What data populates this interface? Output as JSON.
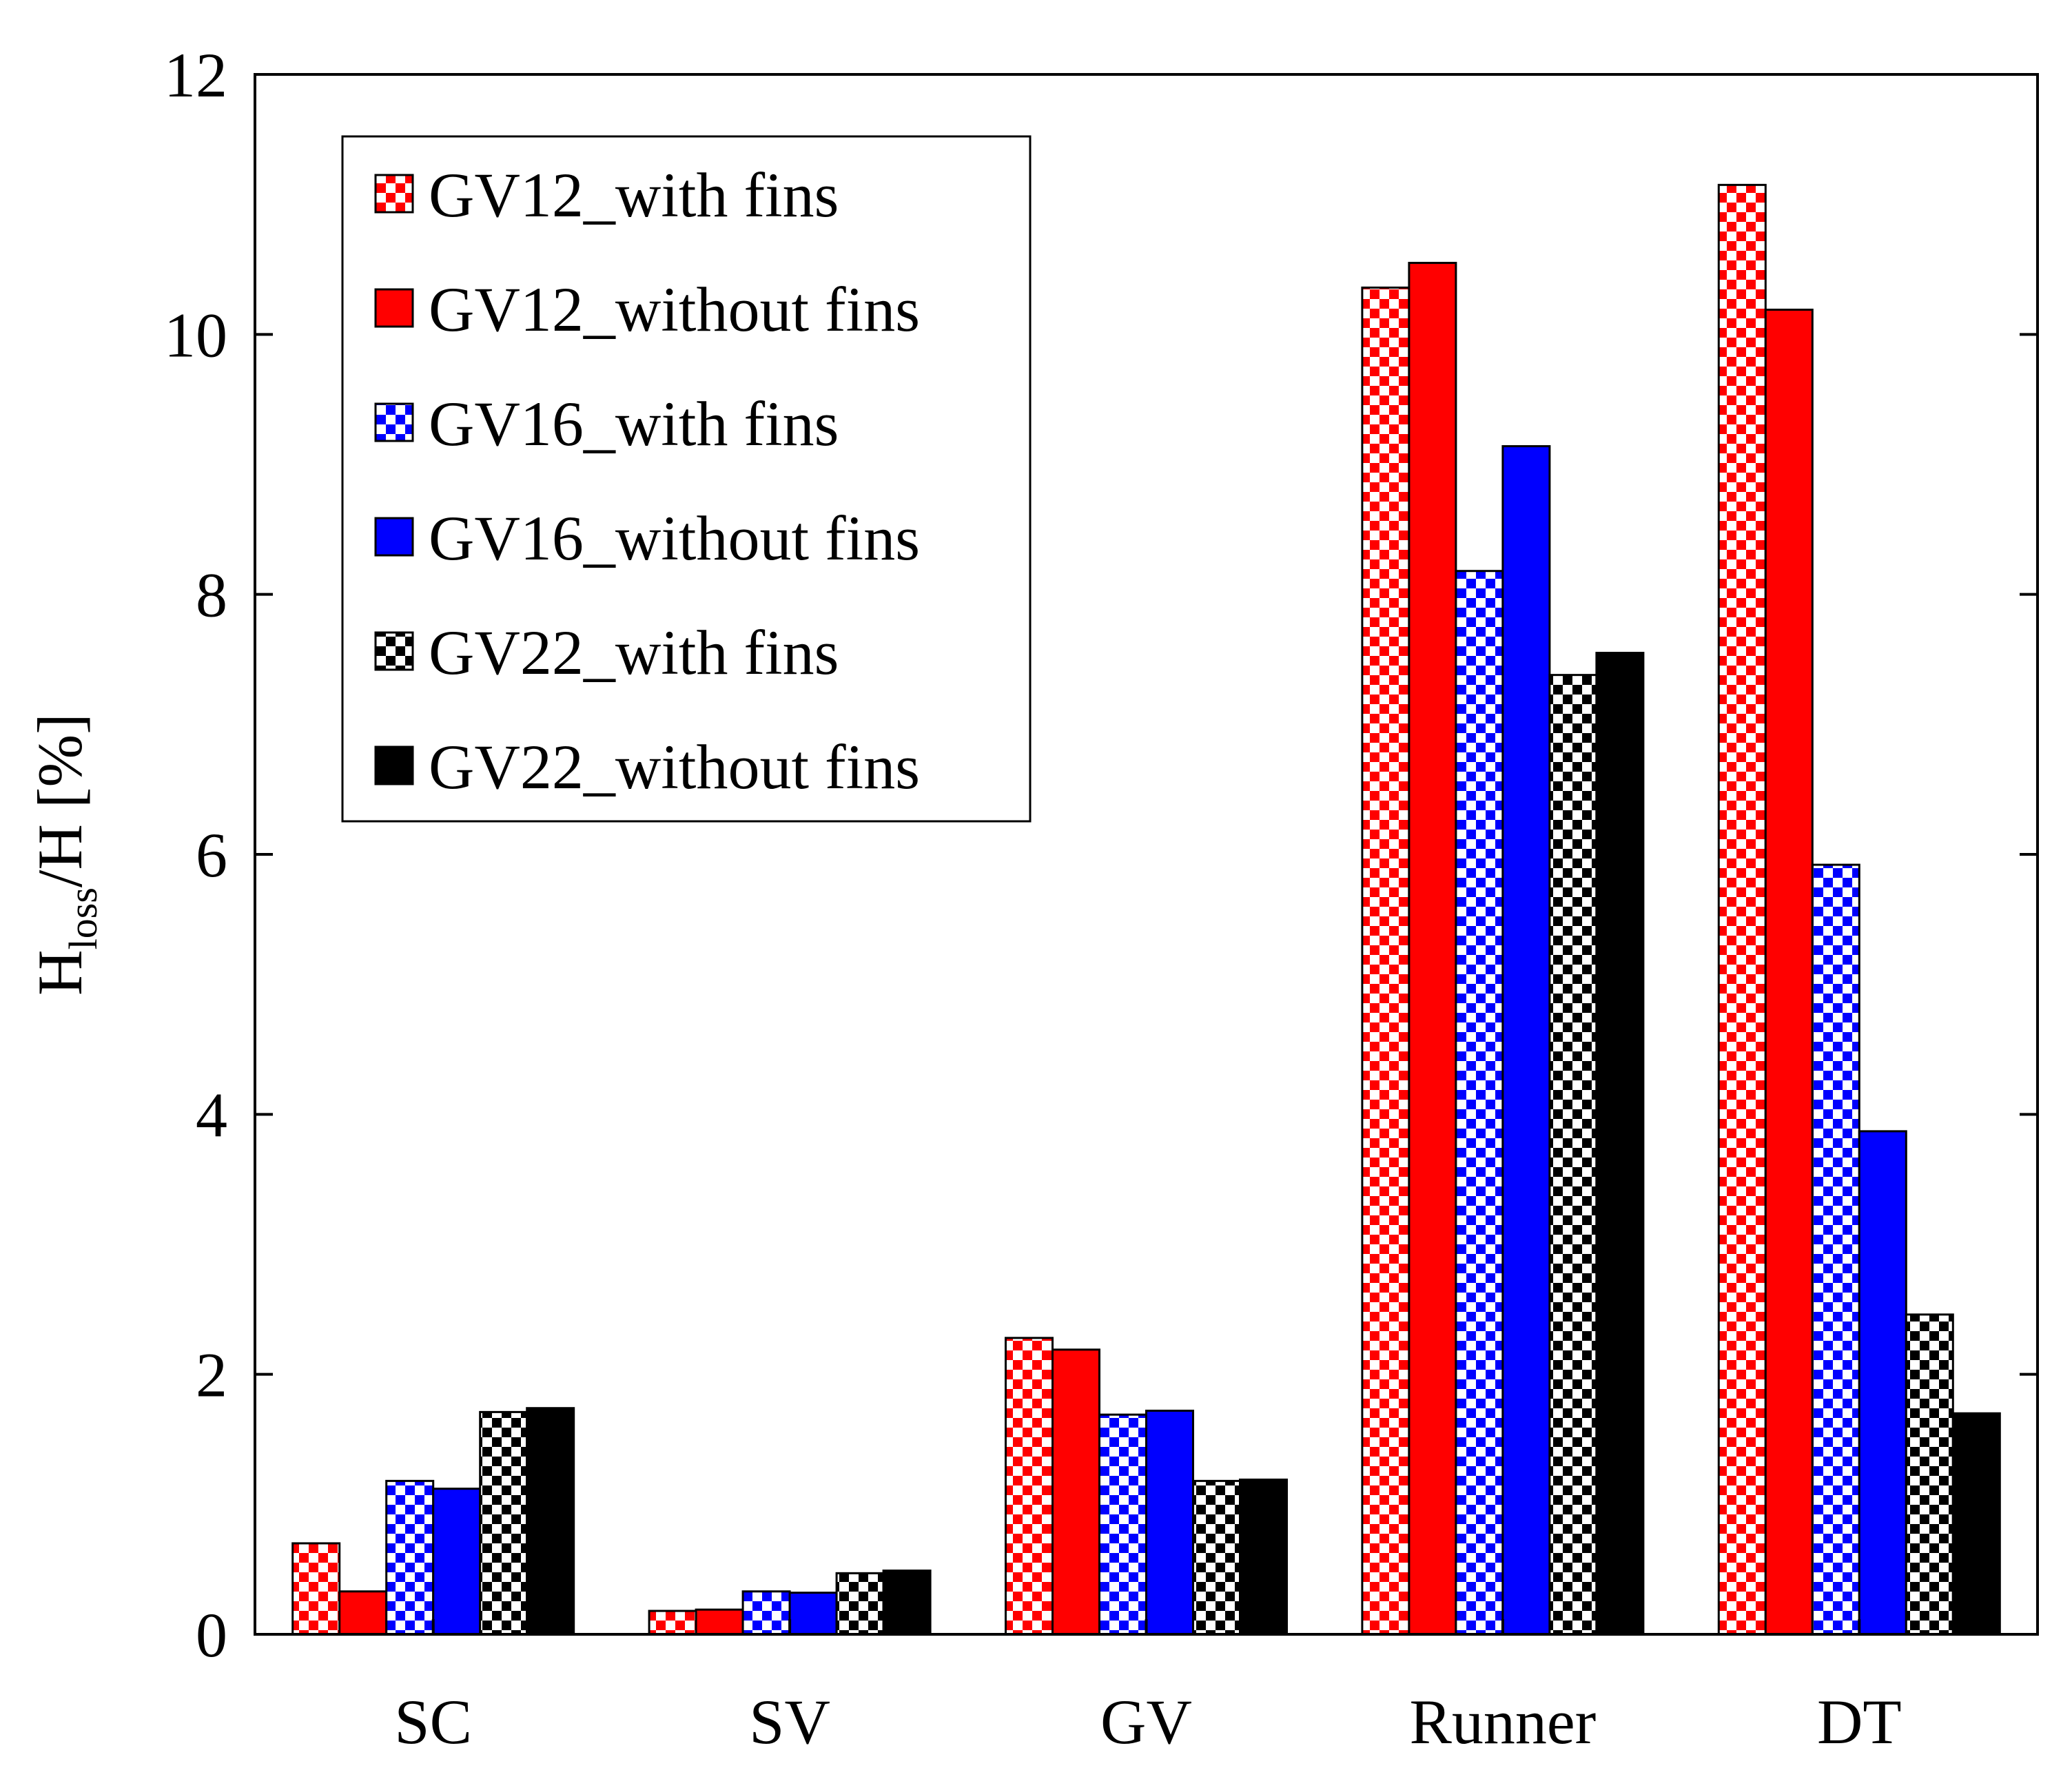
{
  "chart_data": {
    "type": "bar",
    "categories": [
      "SC",
      "SV",
      "GV",
      "Runner",
      "DT"
    ],
    "ylabel": {
      "main": "H",
      "sub": "loss",
      "rest": "/H [%]"
    },
    "xlabel": "",
    "ylim": [
      0,
      12
    ],
    "yticks": [
      0,
      2,
      4,
      6,
      8,
      10,
      12
    ],
    "legend_position": "top-left",
    "series": [
      {
        "name": "GV12_with fins",
        "color": "#ff0000",
        "pattern": "checker",
        "values": [
          0.7,
          0.18,
          2.28,
          10.36,
          11.15
        ]
      },
      {
        "name": "GV12_without fins",
        "color": "#ff0000",
        "pattern": "solid",
        "values": [
          0.33,
          0.19,
          2.19,
          10.55,
          10.19
        ]
      },
      {
        "name": "GV16_with fins",
        "color": "#0000ff",
        "pattern": "checker",
        "values": [
          1.18,
          0.33,
          1.69,
          8.18,
          5.92
        ]
      },
      {
        "name": "GV16_without fins",
        "color": "#0000ff",
        "pattern": "solid",
        "values": [
          1.12,
          0.32,
          1.72,
          9.14,
          3.87
        ]
      },
      {
        "name": "GV22_with fins",
        "color": "#000000",
        "pattern": "checker",
        "values": [
          1.71,
          0.47,
          1.18,
          7.38,
          2.46
        ]
      },
      {
        "name": "GV22_without fins",
        "color": "#000000",
        "pattern": "solid",
        "values": [
          1.74,
          0.49,
          1.19,
          7.55,
          1.7
        ]
      }
    ]
  }
}
